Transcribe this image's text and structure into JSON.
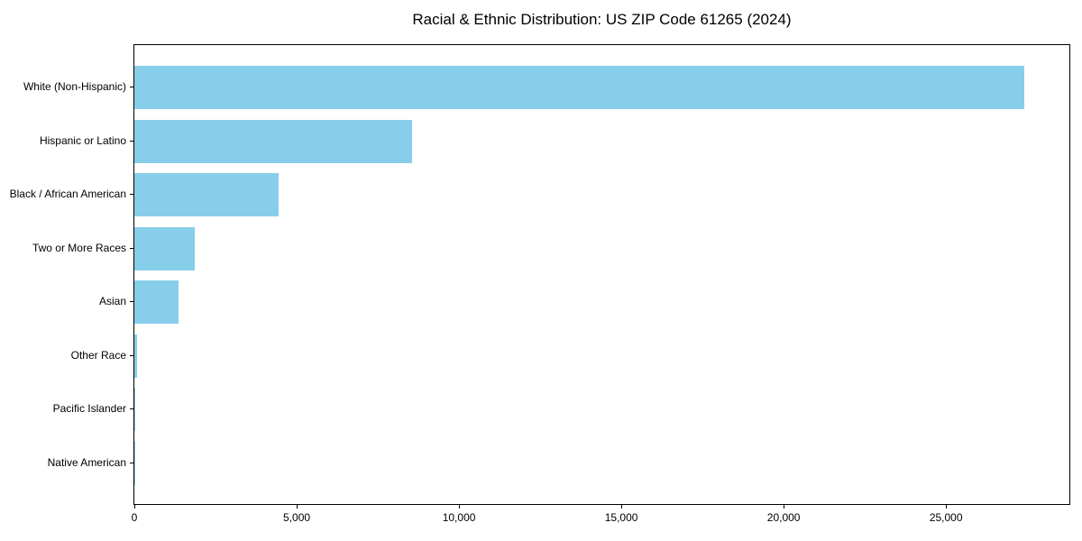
{
  "chart_data": {
    "type": "bar",
    "orientation": "horizontal",
    "title": "Racial & Ethnic Distribution: US ZIP Code 61265 (2024)",
    "categories": [
      "White (Non-Hispanic)",
      "Hispanic or Latino",
      "Black / African American",
      "Two or More Races",
      "Asian",
      "Other Race",
      "Pacific Islander",
      "Native American"
    ],
    "values": [
      27400,
      8560,
      4450,
      1870,
      1350,
      70,
      20,
      10
    ],
    "xlabel": "",
    "ylabel": "",
    "xlim": [
      0,
      28800
    ],
    "xticks": [
      0,
      5000,
      10000,
      15000,
      20000,
      25000
    ],
    "xtick_labels": [
      "0",
      "5,000",
      "10,000",
      "15,000",
      "20,000",
      "25,000"
    ],
    "bar_color": "#87CEEB",
    "axis_color": "#000000",
    "background_color": "#ffffff",
    "grid": false,
    "legend": "none"
  }
}
